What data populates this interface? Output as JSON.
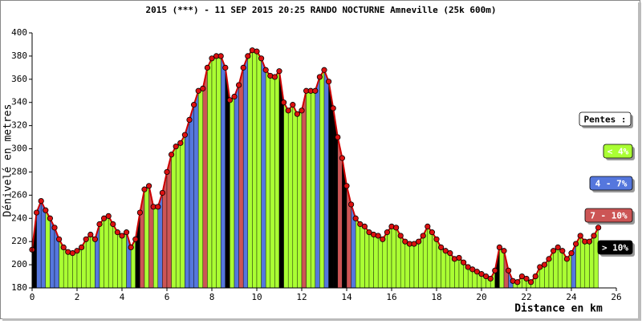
{
  "chart_data": {
    "type": "area",
    "title": "2015 (***) - 11 SEP 2015 20:25 RANDO NOCTURNE Amneville (25k 600m)",
    "x_label": "Distance en km",
    "y_label": "Dénivelé en metres",
    "xlim": [
      0,
      26
    ],
    "xticks": [
      0,
      2,
      4,
      6,
      8,
      10,
      12,
      14,
      16,
      18,
      20,
      22,
      24,
      26
    ],
    "ylim": [
      180,
      400
    ],
    "yticks": [
      180,
      200,
      220,
      240,
      260,
      280,
      300,
      320,
      340,
      360,
      380,
      400
    ],
    "line_color": "#cc0000",
    "marker_color": "#dd1111",
    "x": [
      0,
      0.2,
      0.4,
      0.6,
      0.8,
      1.0,
      1.2,
      1.4,
      1.6,
      1.8,
      2.0,
      2.2,
      2.4,
      2.6,
      2.8,
      3.0,
      3.2,
      3.4,
      3.6,
      3.8,
      4.0,
      4.2,
      4.4,
      4.6,
      4.8,
      5.0,
      5.2,
      5.4,
      5.6,
      5.8,
      6.0,
      6.2,
      6.4,
      6.6,
      6.8,
      7.0,
      7.2,
      7.4,
      7.6,
      7.8,
      8.0,
      8.2,
      8.4,
      8.6,
      8.8,
      9.0,
      9.2,
      9.4,
      9.6,
      9.8,
      10.0,
      10.2,
      10.4,
      10.6,
      10.8,
      11.0,
      11.2,
      11.4,
      11.6,
      11.8,
      12.0,
      12.2,
      12.4,
      12.6,
      12.8,
      13.0,
      13.2,
      13.4,
      13.6,
      13.8,
      14.0,
      14.2,
      14.4,
      14.6,
      14.8,
      15.0,
      15.2,
      15.4,
      15.6,
      15.8,
      16.0,
      16.2,
      16.4,
      16.6,
      16.8,
      17.0,
      17.2,
      17.4,
      17.6,
      17.8,
      18.0,
      18.2,
      18.4,
      18.6,
      18.8,
      19.0,
      19.2,
      19.4,
      19.6,
      19.8,
      20.0,
      20.2,
      20.4,
      20.6,
      20.8,
      21.0,
      21.2,
      21.4,
      21.6,
      21.8,
      22.0,
      22.2,
      22.4,
      22.6,
      22.8,
      23.0,
      23.2,
      23.4,
      23.6,
      23.8,
      24.0,
      24.2,
      24.4,
      24.6,
      24.8,
      25.0,
      25.2
    ],
    "values": [
      213,
      245,
      255,
      247,
      240,
      232,
      222,
      215,
      211,
      210,
      212,
      215,
      222,
      226,
      222,
      235,
      240,
      242,
      235,
      228,
      225,
      228,
      215,
      222,
      245,
      265,
      268,
      250,
      250,
      262,
      280,
      295,
      302,
      305,
      312,
      325,
      338,
      350,
      352,
      370,
      378,
      380,
      380,
      370,
      342,
      345,
      355,
      370,
      380,
      385,
      384,
      378,
      368,
      363,
      362,
      367,
      340,
      333,
      338,
      330,
      333,
      350,
      350,
      350,
      362,
      368,
      358,
      335,
      310,
      292,
      268,
      252,
      240,
      235,
      233,
      228,
      226,
      225,
      222,
      228,
      233,
      232,
      225,
      220,
      218,
      218,
      220,
      225,
      233,
      228,
      222,
      215,
      212,
      210,
      205,
      206,
      202,
      198,
      196,
      194,
      192,
      190,
      188,
      195,
      215,
      212,
      195,
      186,
      185,
      190,
      188,
      185,
      190,
      198,
      200,
      205,
      212,
      215,
      212,
      205,
      210,
      218,
      225,
      220,
      220,
      225,
      232
    ],
    "legend": {
      "title": "Pentes :",
      "items": [
        {
          "label": "< 4%",
          "color": "#aaff33",
          "max": 4
        },
        {
          "label": "4 - 7%",
          "color": "#5577dd",
          "max": 7
        },
        {
          "label": "7 - 10%",
          "color": "#cc5555",
          "max": 10
        },
        {
          "label": "> 10%",
          "color": "#000000"
        }
      ]
    }
  }
}
